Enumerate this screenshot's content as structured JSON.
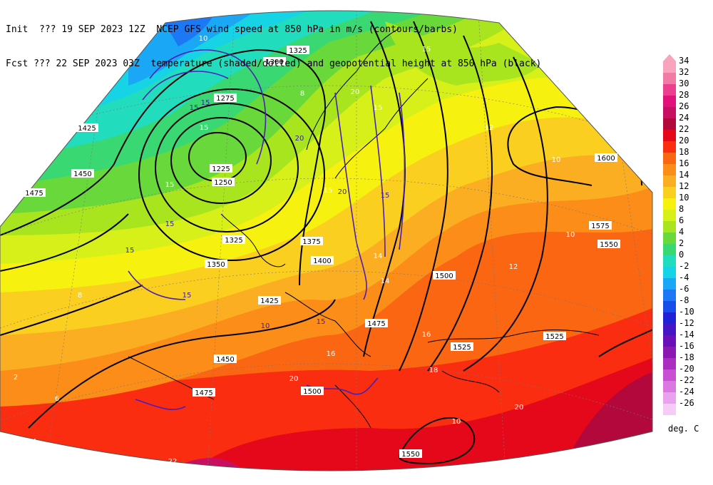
{
  "header": {
    "line1": "Init  ??? 19 SEP 2023 12Z  NCEP GFS wind speed at 850 hPa in m/s (contours/barbs)",
    "line2": "Fcst ??? 22 SEP 2023 03Z  temperature (shaded/dotted) and geopotential height at 850 hPa (black)"
  },
  "colorbar": {
    "units": "deg. C",
    "levels": [
      {
        "label": "34",
        "color": "#f9a3bd"
      },
      {
        "label": "32",
        "color": "#f27aa6"
      },
      {
        "label": "30",
        "color": "#ec3f8e"
      },
      {
        "label": "28",
        "color": "#e0137b"
      },
      {
        "label": "26",
        "color": "#c90f62"
      },
      {
        "label": "24",
        "color": "#b2083c"
      },
      {
        "label": "22",
        "color": "#e5081a"
      },
      {
        "label": "20",
        "color": "#fb2d10"
      },
      {
        "label": "18",
        "color": "#fb6612"
      },
      {
        "label": "16",
        "color": "#fb8d18"
      },
      {
        "label": "14",
        "color": "#fcae22"
      },
      {
        "label": "12",
        "color": "#fbcf20"
      },
      {
        "label": "10",
        "color": "#f7f10f"
      },
      {
        "label": "8",
        "color": "#d8f01a"
      },
      {
        "label": "6",
        "color": "#a9e51f"
      },
      {
        "label": "4",
        "color": "#69d83b"
      },
      {
        "label": "2",
        "color": "#3ad872"
      },
      {
        "label": "0",
        "color": "#22dcbe"
      },
      {
        "label": "-2",
        "color": "#16d3e6"
      },
      {
        "label": "-4",
        "color": "#1aa7f5"
      },
      {
        "label": "-6",
        "color": "#1c78f4"
      },
      {
        "label": "-8",
        "color": "#164ee9"
      },
      {
        "label": "-10",
        "color": "#2121d6"
      },
      {
        "label": "-12",
        "color": "#4516c6"
      },
      {
        "label": "-14",
        "color": "#6a10b8"
      },
      {
        "label": "-16",
        "color": "#8c18b4"
      },
      {
        "label": "-18",
        "color": "#ab2ec0"
      },
      {
        "label": "-20",
        "color": "#c84fd3"
      },
      {
        "label": "-22",
        "color": "#da77e1"
      },
      {
        "label": "-24",
        "color": "#eaa2ee"
      },
      {
        "label": "-26",
        "color": "#f6cbf5"
      }
    ]
  },
  "map": {
    "height_labels": [
      "1325",
      "1300",
      "1275",
      "1225",
      "1250",
      "1325",
      "1375",
      "1400",
      "1350",
      "1425",
      "1450",
      "1475",
      "1425",
      "1450",
      "1475",
      "1500",
      "1550",
      "1500",
      "1475",
      "1525",
      "1525",
      "1550",
      "1575",
      "1600",
      "1400",
      "1475"
    ],
    "temp_labels": [
      "10",
      "15",
      "20",
      "15",
      "15",
      "15",
      "15",
      "12",
      "10",
      "14",
      "16",
      "18",
      "20",
      "22",
      "10",
      "10",
      "12",
      "14",
      "16",
      "20",
      "8",
      "6",
      "4",
      "2",
      "8"
    ],
    "windspeed_labels": [
      "15",
      "15",
      "20",
      "15",
      "15",
      "20",
      "15",
      "10",
      "15",
      "15"
    ]
  }
}
